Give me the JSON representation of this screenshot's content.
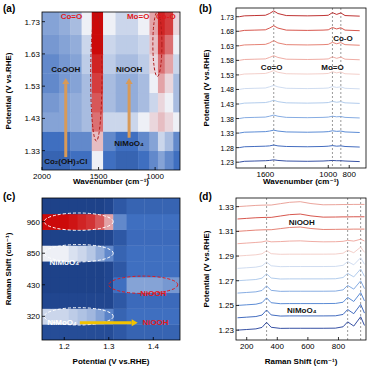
{
  "chart_data": [
    {
      "type": "heatmap",
      "title": "(a)",
      "x_label": "Wavenumber (cm⁻¹)",
      "y_label": "Potential (V vs.RHE)",
      "x": [
        2000,
        1900,
        1800,
        1700,
        1600,
        1520,
        1400,
        1300,
        1200,
        1100,
        1000,
        950,
        880,
        800
      ],
      "y": [
        1.3,
        1.36,
        1.42,
        1.48,
        1.54,
        1.6,
        1.66,
        1.72
      ],
      "z": [
        [
          0.25,
          0.25,
          0.25,
          0.3,
          0.3,
          0.55,
          0.3,
          0.25,
          0.25,
          0.3,
          0.35,
          0.4,
          0.35,
          0.3
        ],
        [
          0.3,
          0.3,
          0.3,
          0.35,
          0.35,
          0.65,
          0.35,
          0.3,
          0.3,
          0.35,
          0.4,
          0.5,
          0.45,
          0.35
        ],
        [
          0.4,
          0.4,
          0.4,
          0.42,
          0.45,
          0.8,
          0.5,
          0.5,
          0.5,
          0.55,
          0.6,
          0.65,
          0.6,
          0.55
        ],
        [
          0.38,
          0.38,
          0.4,
          0.42,
          0.45,
          0.85,
          0.45,
          0.42,
          0.42,
          0.45,
          0.5,
          0.6,
          0.55,
          0.45
        ],
        [
          0.35,
          0.35,
          0.38,
          0.4,
          0.45,
          0.9,
          0.45,
          0.42,
          0.42,
          0.45,
          0.55,
          0.7,
          0.6,
          0.45
        ],
        [
          0.35,
          0.35,
          0.38,
          0.4,
          0.48,
          0.95,
          0.48,
          0.45,
          0.45,
          0.48,
          0.6,
          0.8,
          0.7,
          0.5
        ],
        [
          0.38,
          0.38,
          0.4,
          0.42,
          0.5,
          1.0,
          0.5,
          0.48,
          0.48,
          0.5,
          0.65,
          0.9,
          0.8,
          0.55
        ],
        [
          0.4,
          0.4,
          0.42,
          0.45,
          0.55,
          1.0,
          0.55,
          0.5,
          0.5,
          0.55,
          0.7,
          0.95,
          0.9,
          0.6
        ]
      ],
      "zlim": [
        0,
        1
      ],
      "xlim": [
        2000,
        780
      ],
      "ylim": [
        1.27,
        1.76
      ],
      "xticks": [
        2000,
        1500,
        1000
      ],
      "yticks": [
        1.33,
        1.43,
        1.53,
        1.63,
        1.73
      ],
      "annotations": [
        {
          "text": "Co=O",
          "x": 1740,
          "y": 1.745,
          "color": "#e0191c"
        },
        {
          "text": "Mo=O",
          "x": 1150,
          "y": 1.745,
          "color": "#e0191c"
        },
        {
          "text": "Co-O",
          "x": 905,
          "y": 1.745,
          "color": "#e0191c"
        },
        {
          "text": "CoOOH",
          "x": 1790,
          "y": 1.58,
          "color": "#111111"
        },
        {
          "text": "Co₂(OH)₃Cl",
          "x": 1790,
          "y": 1.295,
          "color": "#111111"
        },
        {
          "text": "NiOOH",
          "x": 1230,
          "y": 1.58,
          "color": "#111111"
        },
        {
          "text": "NiMoO₄",
          "x": 1230,
          "y": 1.35,
          "color": "#111111"
        }
      ],
      "arrows": [
        {
          "from": [
            1790,
            1.31
          ],
          "to": [
            1790,
            1.555
          ],
          "color": "#d89a58"
        },
        {
          "from": [
            1230,
            1.37
          ],
          "to": [
            1230,
            1.555
          ],
          "color": "#d89a58"
        }
      ],
      "regions": [
        {
          "x": [
            1570,
            1470
          ],
          "y": [
            1.36,
            1.76
          ],
          "color": "#b01818"
        },
        {
          "x": [
            1020,
            940
          ],
          "y": [
            1.56,
            1.76
          ],
          "color": "#b01818"
        }
      ]
    },
    {
      "type": "line",
      "title": "(b)",
      "x_label": "Wavenumber (cm⁻¹)",
      "y_label": "Potential (V vs.RHE)",
      "x": [
        1850,
        1800,
        1700,
        1600,
        1560,
        1520,
        1480,
        1400,
        1200,
        1050,
        1000,
        960,
        920,
        880,
        840,
        700
      ],
      "series": [
        {
          "color": "#1f3c99",
          "values": [
            1.23,
            1.233,
            1.234,
            1.235,
            1.236,
            1.238,
            1.236,
            1.234,
            1.233,
            1.234,
            1.235,
            1.236,
            1.235,
            1.235,
            1.234,
            1.232
          ]
        },
        {
          "color": "#2e5bb8",
          "values": [
            1.28,
            1.283,
            1.284,
            1.285,
            1.286,
            1.289,
            1.286,
            1.284,
            1.283,
            1.284,
            1.285,
            1.287,
            1.285,
            1.286,
            1.284,
            1.282
          ]
        },
        {
          "color": "#4a7fd0",
          "values": [
            1.33,
            1.333,
            1.334,
            1.335,
            1.337,
            1.34,
            1.337,
            1.334,
            1.333,
            1.334,
            1.335,
            1.338,
            1.336,
            1.337,
            1.334,
            1.332
          ]
        },
        {
          "color": "#78a3df",
          "values": [
            1.38,
            1.383,
            1.384,
            1.385,
            1.388,
            1.392,
            1.388,
            1.384,
            1.383,
            1.384,
            1.385,
            1.388,
            1.386,
            1.387,
            1.384,
            1.382
          ]
        },
        {
          "color": "#a9c6ea",
          "values": [
            1.43,
            1.433,
            1.434,
            1.435,
            1.438,
            1.443,
            1.438,
            1.434,
            1.433,
            1.434,
            1.435,
            1.439,
            1.436,
            1.438,
            1.434,
            1.432
          ]
        },
        {
          "color": "#c9d8ee",
          "values": [
            1.48,
            1.483,
            1.484,
            1.485,
            1.489,
            1.494,
            1.489,
            1.484,
            1.483,
            1.484,
            1.485,
            1.49,
            1.487,
            1.489,
            1.484,
            1.482
          ]
        },
        {
          "color": "#f2c9c4",
          "values": [
            1.53,
            1.533,
            1.534,
            1.535,
            1.539,
            1.545,
            1.539,
            1.534,
            1.533,
            1.534,
            1.535,
            1.541,
            1.537,
            1.54,
            1.534,
            1.532
          ]
        },
        {
          "color": "#eda39a",
          "values": [
            1.58,
            1.583,
            1.584,
            1.585,
            1.59,
            1.596,
            1.59,
            1.584,
            1.583,
            1.584,
            1.585,
            1.592,
            1.587,
            1.591,
            1.584,
            1.582
          ]
        },
        {
          "color": "#e27567",
          "values": [
            1.63,
            1.633,
            1.634,
            1.635,
            1.64,
            1.648,
            1.64,
            1.634,
            1.633,
            1.634,
            1.635,
            1.642,
            1.637,
            1.641,
            1.634,
            1.632
          ]
        },
        {
          "color": "#d2443a",
          "values": [
            1.68,
            1.683,
            1.684,
            1.685,
            1.691,
            1.699,
            1.691,
            1.684,
            1.683,
            1.684,
            1.685,
            1.693,
            1.688,
            1.692,
            1.684,
            1.682
          ]
        },
        {
          "color": "#b81c1c",
          "values": [
            1.73,
            1.733,
            1.734,
            1.735,
            1.741,
            1.75,
            1.741,
            1.734,
            1.733,
            1.734,
            1.735,
            1.744,
            1.738,
            1.743,
            1.734,
            1.732
          ]
        }
      ],
      "xlim": [
        1880,
        640
      ],
      "ylim": [
        1.21,
        1.76
      ],
      "xticks": [
        1600,
        1000,
        800
      ],
      "yticks": [
        1.23,
        1.28,
        1.33,
        1.38,
        1.43,
        1.48,
        1.53,
        1.58,
        1.63,
        1.68,
        1.73
      ],
      "reference_lines": [
        1520,
        960,
        880
      ],
      "annotations": [
        {
          "text": "Co=O",
          "x": 1540,
          "y": 1.555,
          "color": "#111111"
        },
        {
          "text": "Mo=O",
          "x": 960,
          "y": 1.555,
          "color": "#111111"
        },
        {
          "text": "Co-O",
          "x": 860,
          "y": 1.655,
          "color": "#111111"
        }
      ]
    },
    {
      "type": "heatmap",
      "title": "(c)",
      "x_label": "Potential (V vs.RHE)",
      "y_label": "Raman Shift (cm⁻¹)",
      "x": [
        1.16,
        1.18,
        1.2,
        1.22,
        1.24,
        1.26,
        1.28,
        1.3,
        1.32,
        1.36,
        1.4,
        1.44
      ],
      "y_categories": [
        null,
        320,
        null,
        430,
        null,
        850,
        null,
        960,
        null
      ],
      "z": [
        [
          0.15,
          0.15,
          0.15,
          0.15,
          0.15,
          0.15,
          0.15,
          0.15,
          0.2,
          0.25,
          0.25,
          0.25
        ],
        [
          0.5,
          0.5,
          0.5,
          0.48,
          0.46,
          0.44,
          0.4,
          0.34,
          0.25,
          0.3,
          0.3,
          0.3
        ],
        [
          0.12,
          0.12,
          0.12,
          0.12,
          0.12,
          0.12,
          0.12,
          0.12,
          0.2,
          0.28,
          0.28,
          0.28
        ],
        [
          0.1,
          0.1,
          0.1,
          0.1,
          0.1,
          0.1,
          0.1,
          0.12,
          0.3,
          0.4,
          0.4,
          0.38
        ],
        [
          0.1,
          0.1,
          0.1,
          0.1,
          0.1,
          0.1,
          0.1,
          0.12,
          0.2,
          0.3,
          0.3,
          0.3
        ],
        [
          0.55,
          0.55,
          0.55,
          0.52,
          0.5,
          0.47,
          0.42,
          0.35,
          0.25,
          0.3,
          0.3,
          0.3
        ],
        [
          0.1,
          0.1,
          0.1,
          0.1,
          0.1,
          0.1,
          0.1,
          0.12,
          0.2,
          0.28,
          0.28,
          0.28
        ],
        [
          1.0,
          1.0,
          1.0,
          0.98,
          0.95,
          0.92,
          0.85,
          0.7,
          0.35,
          0.3,
          0.3,
          0.3
        ],
        [
          0.1,
          0.1,
          0.1,
          0.1,
          0.1,
          0.1,
          0.1,
          0.12,
          0.2,
          0.25,
          0.25,
          0.25
        ]
      ],
      "zlim": [
        0,
        1
      ],
      "xlim": [
        1.15,
        1.46
      ],
      "xticks": [
        1.2,
        1.3,
        1.4
      ],
      "annotations": [
        {
          "text": "NiMoO₄",
          "x": 1.2,
          "row": 4.4,
          "color": "#ffffff"
        },
        {
          "text": "NiOOH",
          "x": 1.4,
          "row": 2.4,
          "color": "#e0191c"
        },
        {
          "text": "NiMoO₄",
          "x": 1.195,
          "row": 0.6,
          "color": "#ffffff"
        },
        {
          "text": "NiOOH",
          "x": 1.405,
          "row": 0.6,
          "color": "#e0191c"
        }
      ],
      "arrows": [
        {
          "from": [
            1.235,
            0.6
          ],
          "to": [
            1.365,
            0.6
          ],
          "color": "#f2c200"
        }
      ],
      "regions": [
        {
          "x": [
            1.155,
            1.31
          ],
          "row": 7,
          "color": "#ffffff"
        },
        {
          "x": [
            1.155,
            1.31
          ],
          "row": 5,
          "color": "#ffffff"
        },
        {
          "x": [
            1.3,
            1.455
          ],
          "row": 3,
          "color": "#e0191c"
        },
        {
          "x": [
            1.155,
            1.31
          ],
          "row": 1,
          "color": "#ffffff"
        }
      ]
    },
    {
      "type": "line",
      "title": "(d)",
      "x_label": "Raman Shift (cm⁻¹)",
      "y_label": "Potential (V vs.RHE)",
      "x": [
        140,
        200,
        260,
        300,
        330,
        360,
        420,
        480,
        550,
        620,
        700,
        780,
        830,
        860,
        900,
        945,
        970
      ],
      "series": [
        {
          "color": "#1f3c99",
          "values": [
            1.23,
            1.2305,
            1.231,
            1.2322,
            1.2363,
            1.2323,
            1.2314,
            1.2315,
            1.2315,
            1.2315,
            1.2315,
            1.2316,
            1.2327,
            1.2367,
            1.2333,
            1.2408,
            1.2338
          ]
        },
        {
          "color": "#2e5bb8",
          "values": [
            1.24,
            1.2405,
            1.241,
            1.2422,
            1.2463,
            1.2423,
            1.2414,
            1.2415,
            1.2415,
            1.2415,
            1.2415,
            1.2416,
            1.2427,
            1.2467,
            1.2433,
            1.2508,
            1.2438
          ]
        },
        {
          "color": "#4a7fd0",
          "values": [
            1.25,
            1.2505,
            1.251,
            1.2522,
            1.2561,
            1.2522,
            1.2514,
            1.2515,
            1.2515,
            1.2515,
            1.2515,
            1.2516,
            1.2526,
            1.2565,
            1.2532,
            1.2604,
            1.2537
          ]
        },
        {
          "color": "#78a3df",
          "values": [
            1.26,
            1.2605,
            1.261,
            1.2621,
            1.2658,
            1.2622,
            1.2614,
            1.2615,
            1.2615,
            1.2615,
            1.2615,
            1.2616,
            1.2626,
            1.2662,
            1.2632,
            1.2699,
            1.2636
          ]
        },
        {
          "color": "#a9c6ea",
          "values": [
            1.27,
            1.2705,
            1.271,
            1.2721,
            1.2756,
            1.2722,
            1.2714,
            1.2715,
            1.2715,
            1.2715,
            1.2715,
            1.2716,
            1.2726,
            1.276,
            1.2731,
            1.2795,
            1.2735
          ]
        },
        {
          "color": "#c9d8ee",
          "values": [
            1.28,
            1.2805,
            1.281,
            1.282,
            1.2851,
            1.2821,
            1.2814,
            1.2815,
            1.2815,
            1.2815,
            1.2815,
            1.2816,
            1.2825,
            1.2855,
            1.2829,
            1.2886,
            1.2833
          ]
        },
        {
          "color": "#f2c9c4",
          "values": [
            1.29,
            1.2905,
            1.291,
            1.2918,
            1.2943,
            1.2919,
            1.2914,
            1.2915,
            1.2915,
            1.2915,
            1.2915,
            1.2916,
            1.2923,
            1.2947,
            1.2927,
            1.2972,
            1.293
          ]
        },
        {
          "color": "#eda39a",
          "values": [
            1.3,
            1.3005,
            1.301,
            1.3014,
            1.3023,
            1.3015,
            1.3017,
            1.3021,
            1.3023,
            1.3018,
            1.3015,
            1.3016,
            1.3019,
            1.3027,
            1.3021,
            1.3036,
            1.3022
          ]
        },
        {
          "color": "#e27567",
          "values": [
            1.31,
            1.3105,
            1.311,
            1.3112,
            1.3113,
            1.3113,
            1.3122,
            1.3131,
            1.3135,
            1.3123,
            1.3115,
            1.3116,
            1.3117,
            1.3117,
            1.3118,
            1.3118,
            1.3118
          ]
        },
        {
          "color": "#d2443a",
          "values": [
            1.32,
            1.3205,
            1.321,
            1.3212,
            1.3213,
            1.3213,
            1.3224,
            1.3235,
            1.324,
            1.3225,
            1.3215,
            1.3216,
            1.3217,
            1.3217,
            1.3218,
            1.3218,
            1.3218
          ]
        },
        {
          "color": "#e89a90",
          "values": [
            1.33,
            1.3305,
            1.331,
            1.3312,
            1.3313,
            1.3313,
            1.3324,
            1.3335,
            1.334,
            1.3325,
            1.3315,
            1.3316,
            1.3317,
            1.3317,
            1.3318,
            1.3318,
            1.3318
          ]
        }
      ],
      "xlim": [
        130,
        980
      ],
      "ylim": [
        1.222,
        1.337
      ],
      "xticks": [
        200,
        400,
        600,
        800
      ],
      "yticks": [
        1.23,
        1.25,
        1.27,
        1.29,
        1.31,
        1.33
      ],
      "reference_lines": [
        330,
        860,
        945
      ],
      "annotations": [
        {
          "text": "NiOOH",
          "x": 560,
          "y": 1.3165,
          "color": "#111111"
        },
        {
          "text": "NiMoO₄",
          "x": 560,
          "y": 1.2455,
          "color": "#111111"
        }
      ]
    }
  ]
}
